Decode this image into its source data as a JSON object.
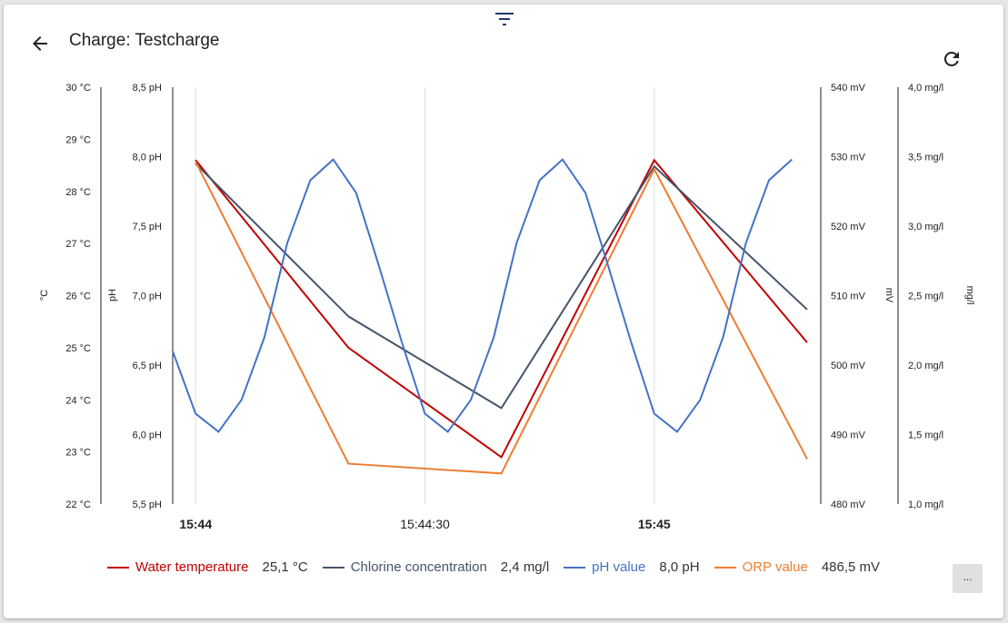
{
  "header": {
    "title": "Charge: Testcharge",
    "back_icon": "arrow-left-icon",
    "filter_icon": "filter-icon",
    "refresh_icon": "refresh-icon"
  },
  "more_button": "...",
  "legend": [
    {
      "name": "Water temperature",
      "value": "25,1 °C",
      "color": "#c00000"
    },
    {
      "name": "Chlorine concentration",
      "value": "2,4 mg/l",
      "color": "#44546a"
    },
    {
      "name": "pH value",
      "value": "8,0 pH",
      "color": "#4472c4"
    },
    {
      "name": "ORP value",
      "value": "486,5 mV",
      "color": "#ed7d31"
    }
  ],
  "chart_data": {
    "type": "line",
    "x_range": [
      "15:43:57",
      "15:45:20"
    ],
    "x_ticks": [
      {
        "label": "15:44",
        "bold": true
      },
      {
        "label": "15:44:30",
        "bold": false
      },
      {
        "label": "15:45",
        "bold": true
      }
    ],
    "grid": "vertical at x ticks",
    "axes": [
      {
        "id": "temp",
        "side": "left",
        "title": "°C",
        "range": [
          22,
          30
        ],
        "ticks": [
          "22 °C",
          "23 °C",
          "24 °C",
          "25 °C",
          "26 °C",
          "27 °C",
          "28 °C",
          "29 °C",
          "30 °C"
        ]
      },
      {
        "id": "ph",
        "side": "left",
        "title": "pH",
        "range": [
          5.5,
          8.5
        ],
        "ticks": [
          "5,5 pH",
          "6,0 pH",
          "6,5 pH",
          "7,0 pH",
          "7,5 pH",
          "8,0 pH",
          "8,5 pH"
        ]
      },
      {
        "id": "orp",
        "side": "right",
        "title": "mV",
        "range": [
          480,
          540
        ],
        "ticks": [
          "480 mV",
          "490 mV",
          "500 mV",
          "510 mV",
          "520 mV",
          "530 mV",
          "540 mV"
        ]
      },
      {
        "id": "cl",
        "side": "right",
        "title": "mg/l",
        "range": [
          1.0,
          4.0
        ],
        "ticks": [
          "1,0 mg/l",
          "1,5 mg/l",
          "2,0 mg/l",
          "2,5 mg/l",
          "3,0 mg/l",
          "3,5 mg/l",
          "4,0 mg/l"
        ]
      }
    ],
    "series": [
      {
        "name": "Water temperature",
        "axis": "temp",
        "color": "#c00000",
        "x": [
          "15:44:00",
          "15:44:20",
          "15:44:40",
          "15:45:00",
          "15:45:20"
        ],
        "y": [
          28.6,
          25.0,
          22.9,
          28.6,
          25.1
        ]
      },
      {
        "name": "Chlorine concentration",
        "axis": "cl",
        "color": "#44546a",
        "x": [
          "15:44:00",
          "15:44:20",
          "15:44:40",
          "15:45:00",
          "15:45:20"
        ],
        "y": [
          3.45,
          2.35,
          1.69,
          3.43,
          2.4
        ]
      },
      {
        "name": "ORP value",
        "axis": "orp",
        "color": "#ed7d31",
        "x": [
          "15:44:00",
          "15:44:20",
          "15:44:40",
          "15:45:00",
          "15:45:20"
        ],
        "y": [
          529.3,
          485.8,
          484.4,
          528.2,
          486.5
        ]
      },
      {
        "name": "pH value",
        "axis": "ph",
        "color": "#4472c4",
        "x": [
          "15:43:57",
          "15:44:00",
          "15:44:03",
          "15:44:06",
          "15:44:09",
          "15:44:12",
          "15:44:15",
          "15:44:18",
          "15:44:21",
          "15:44:24",
          "15:44:27",
          "15:44:30",
          "15:44:33",
          "15:44:36",
          "15:44:39",
          "15:44:42",
          "15:44:45",
          "15:44:48",
          "15:44:51",
          "15:44:54",
          "15:44:57",
          "15:45:00",
          "15:45:03",
          "15:45:06",
          "15:45:09",
          "15:45:12",
          "15:45:15",
          "15:45:18"
        ],
        "y": [
          6.6,
          6.15,
          6.02,
          6.25,
          6.7,
          7.38,
          7.83,
          7.98,
          7.74,
          7.21,
          6.66,
          6.15,
          6.02,
          6.25,
          6.7,
          7.38,
          7.83,
          7.98,
          7.74,
          7.21,
          6.66,
          6.15,
          6.02,
          6.25,
          6.7,
          7.38,
          7.83,
          7.98
        ]
      }
    ]
  }
}
